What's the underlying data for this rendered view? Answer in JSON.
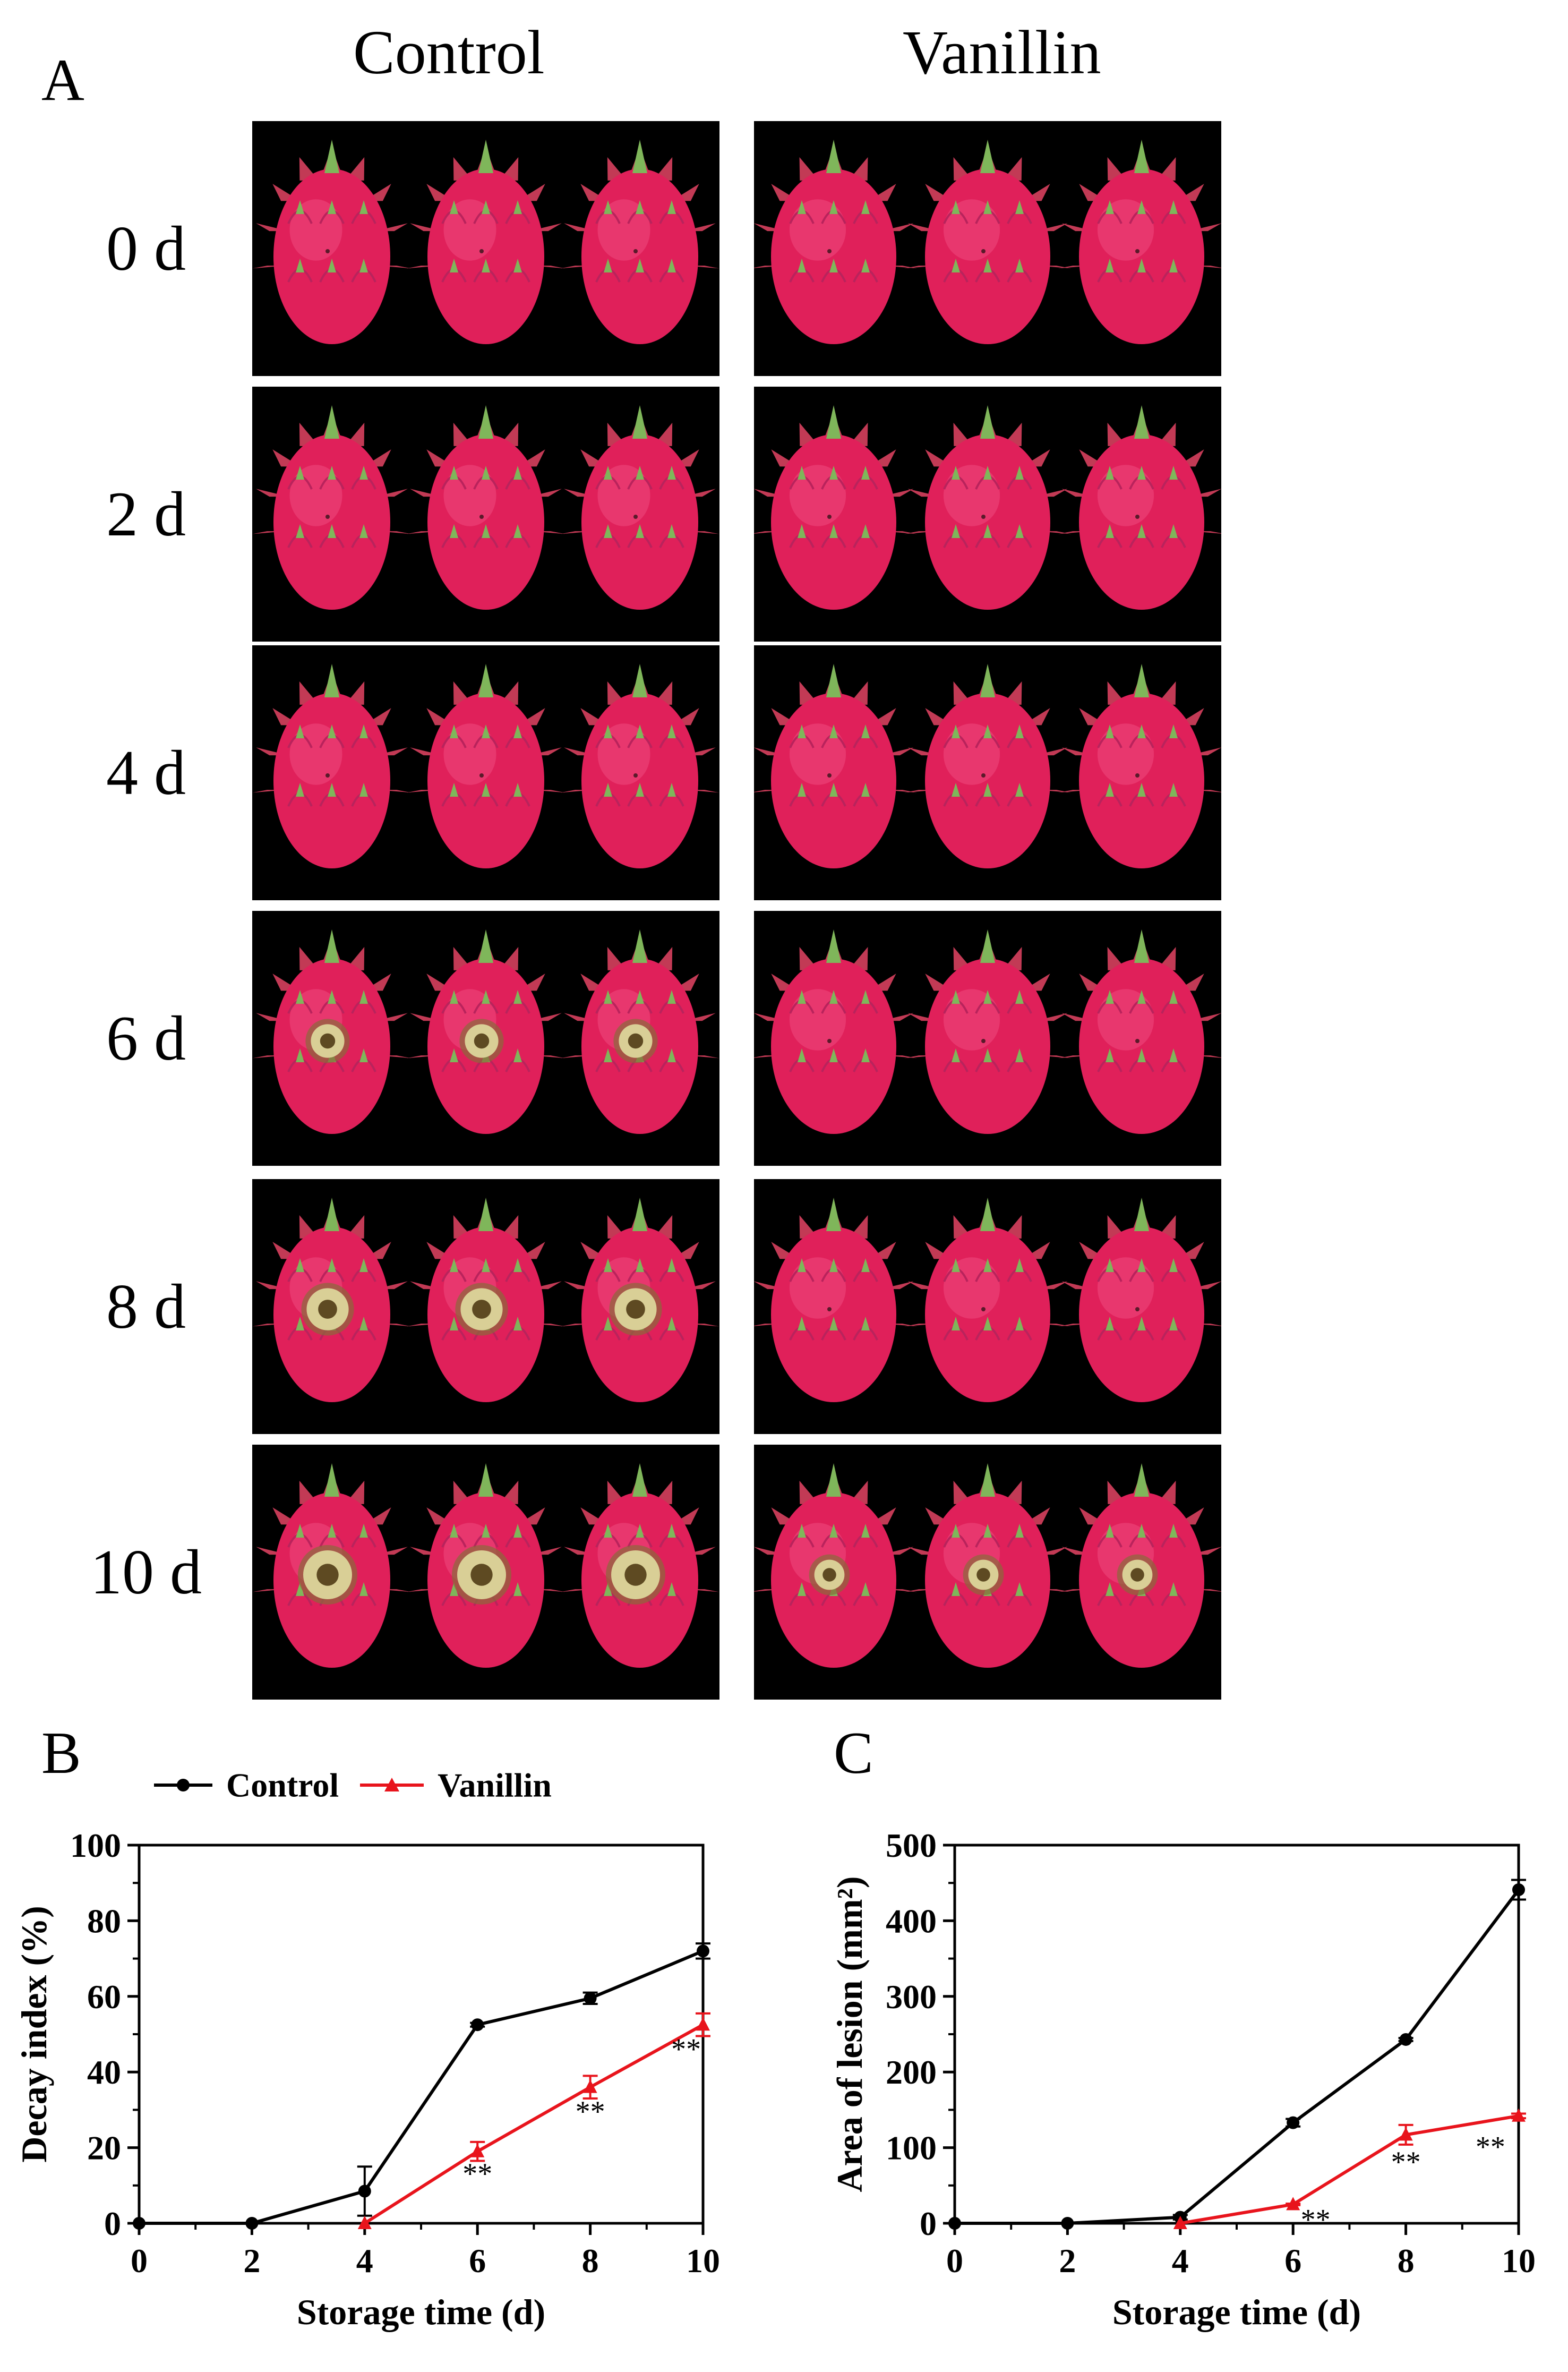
{
  "panel_a": {
    "letter": "A",
    "columns": [
      "Control",
      "Vanillin"
    ],
    "rows": [
      "0 d",
      "2 d",
      "4 d",
      "6 d",
      "8 d",
      "10 d"
    ],
    "lesion_levels": {
      "control": [
        0,
        0,
        0,
        0.55,
        0.8,
        1.0
      ],
      "vanillin": [
        0,
        0,
        0,
        0,
        0,
        0.45
      ]
    },
    "colors": {
      "fruit": "#e0205a",
      "bract": "#7fb65a",
      "background": "#000000"
    }
  },
  "legend": {
    "control_label": "Control",
    "vanillin_label": "Vanillin"
  },
  "chart_data": [
    {
      "panel": "B",
      "type": "line",
      "xlabel": "Storage time (d)",
      "ylabel": "Decay index (%)",
      "x": [
        0,
        2,
        4,
        6,
        8,
        10
      ],
      "xlim": [
        0,
        10
      ],
      "ylim": [
        0,
        100
      ],
      "xticks": [
        0,
        2,
        4,
        6,
        8,
        10
      ],
      "yticks": [
        0,
        20,
        40,
        60,
        80,
        100
      ],
      "series": [
        {
          "name": "Control",
          "color": "#000000",
          "marker": "circle",
          "x": [
            0,
            2,
            4,
            6,
            8,
            10
          ],
          "values": [
            0,
            0,
            8.5,
            52.5,
            59.5,
            72
          ],
          "errors": [
            0,
            0,
            6.5,
            0.5,
            1.5,
            2
          ]
        },
        {
          "name": "Vanillin",
          "color": "#e8141c",
          "marker": "triangle",
          "x": [
            4,
            6,
            8,
            10
          ],
          "values": [
            0,
            19,
            36,
            52.5
          ],
          "errors": [
            0,
            2.5,
            3,
            3
          ]
        }
      ],
      "annotations": [
        {
          "x": 6,
          "y": 10.5,
          "text": "**"
        },
        {
          "x": 8,
          "y": 27,
          "text": "**"
        },
        {
          "x": 9.7,
          "y": 43.5,
          "text": "**"
        }
      ]
    },
    {
      "panel": "C",
      "type": "line",
      "xlabel": "Storage time (d)",
      "ylabel": "Area of lesion (mm²)",
      "x": [
        0,
        2,
        4,
        6,
        8,
        10
      ],
      "xlim": [
        0,
        10
      ],
      "ylim": [
        0,
        500
      ],
      "xticks": [
        0,
        2,
        4,
        6,
        8,
        10
      ],
      "yticks": [
        0,
        100,
        200,
        300,
        400,
        500
      ],
      "series": [
        {
          "name": "Control",
          "color": "#000000",
          "marker": "circle",
          "x": [
            0,
            2,
            4,
            6,
            8,
            10
          ],
          "values": [
            0,
            0,
            8,
            133,
            243,
            441
          ],
          "errors": [
            0,
            0,
            3,
            5,
            2,
            13
          ]
        },
        {
          "name": "Vanillin",
          "color": "#e8141c",
          "marker": "triangle",
          "x": [
            4,
            6,
            8,
            10
          ],
          "values": [
            0,
            25,
            117,
            142
          ],
          "errors": [
            0,
            1,
            13,
            3
          ]
        }
      ],
      "annotations": [
        {
          "x": 6.4,
          "y": -8,
          "text": "**"
        },
        {
          "x": 8,
          "y": 68,
          "text": "**"
        },
        {
          "x": 9.5,
          "y": 88,
          "text": "**"
        }
      ]
    }
  ]
}
